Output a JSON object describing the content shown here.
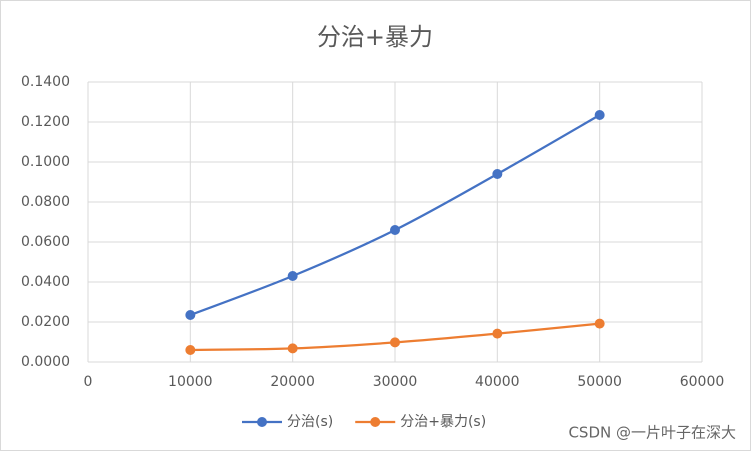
{
  "chart_data": {
    "type": "line",
    "title": "分治+暴力",
    "x": [
      10000,
      20000,
      30000,
      40000,
      50000
    ],
    "series": [
      {
        "name": "分治(s)",
        "color": "#4472c4",
        "values": [
          0.0235,
          0.043,
          0.066,
          0.094,
          0.1235
        ]
      },
      {
        "name": "分治+暴力(s)",
        "color": "#ed7d31",
        "values": [
          0.006,
          0.0068,
          0.0098,
          0.0142,
          0.0192
        ]
      }
    ],
    "xlim": [
      0,
      60000
    ],
    "xticks": [
      0,
      10000,
      20000,
      30000,
      40000,
      50000,
      60000
    ],
    "ylim": [
      0,
      0.14
    ],
    "yticks": [
      {
        "value": 0,
        "label": "0.0000"
      },
      {
        "value": 0.02,
        "label": "0.0200"
      },
      {
        "value": 0.04,
        "label": "0.0400"
      },
      {
        "value": 0.06,
        "label": "0.0600"
      },
      {
        "value": 0.08,
        "label": "0.0800"
      },
      {
        "value": 0.1,
        "label": "0.1000"
      },
      {
        "value": 0.12,
        "label": "0.1200"
      },
      {
        "value": 0.14,
        "label": "0.1400"
      }
    ],
    "grid": true,
    "legend": "bottom",
    "smooth": true,
    "watermark": "CSDN @一片叶子在深大"
  }
}
